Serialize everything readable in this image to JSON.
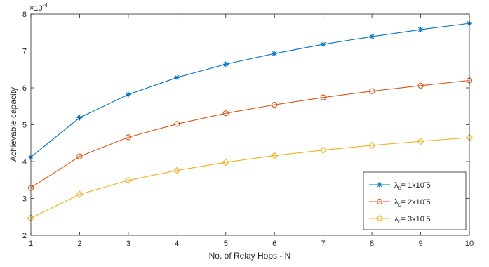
{
  "chart_data": {
    "type": "line",
    "title": "",
    "xlabel": "No. of Relay Hops - N",
    "ylabel": "Achievable capacity",
    "y_multiplier_label": "×10",
    "y_multiplier_exponent": "-4",
    "x": [
      1,
      2,
      3,
      4,
      5,
      6,
      7,
      8,
      9,
      10
    ],
    "xlim": [
      1,
      10
    ],
    "ylim": [
      2,
      8
    ],
    "xticks": [
      1,
      2,
      3,
      4,
      5,
      6,
      7,
      8,
      9,
      10
    ],
    "yticks": [
      2,
      3,
      4,
      5,
      6,
      7,
      8
    ],
    "grid": false,
    "legend_position": "bottom-right",
    "series": [
      {
        "name": "λc= 1x10^-5",
        "legend": {
          "sym": "λ",
          "sub": "c",
          "rest": "= 1x10",
          "sup": "-",
          "tail": "5"
        },
        "color": "#0072BD",
        "marker": "asterisk",
        "values": [
          4.12,
          5.19,
          5.82,
          6.28,
          6.64,
          6.93,
          7.18,
          7.39,
          7.58,
          7.75
        ]
      },
      {
        "name": "λc= 2x10^-5",
        "legend": {
          "sym": "λ",
          "sub": "c",
          "rest": "= 2x10",
          "sup": "-",
          "tail": "5"
        },
        "color": "#D95319",
        "marker": "circle",
        "values": [
          3.29,
          4.14,
          4.66,
          5.02,
          5.31,
          5.54,
          5.74,
          5.91,
          6.06,
          6.2
        ]
      },
      {
        "name": "λc= 3x10^-5",
        "legend": {
          "sym": "λ",
          "sub": "c",
          "rest": "= 3x10",
          "sup": "-",
          "tail": "5"
        },
        "color": "#EDB120",
        "marker": "diamond",
        "values": [
          2.47,
          3.11,
          3.49,
          3.76,
          3.98,
          4.16,
          4.31,
          4.44,
          4.55,
          4.65
        ]
      }
    ]
  }
}
